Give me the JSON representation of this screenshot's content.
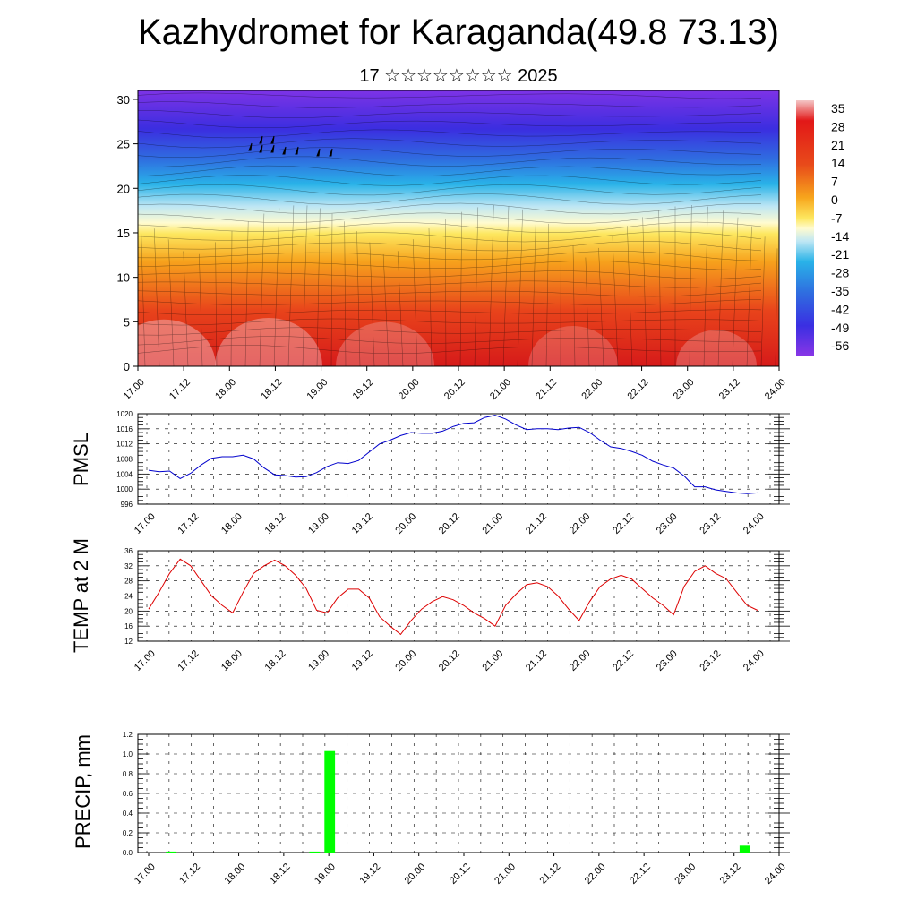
{
  "title": "Kazhydromet for Karaganda(49.8 73.13)",
  "subtitle": "17 ☆☆☆☆☆☆☆☆ 2025",
  "chart_data": [
    {
      "type": "heatmap",
      "x_ticks": [
        "17.00",
        "17.12",
        "18.00",
        "18.12",
        "19.00",
        "19.12",
        "20.00",
        "20.12",
        "21.00",
        "21.12",
        "22.00",
        "22.12",
        "23.00",
        "23.12",
        "24.00"
      ],
      "y_ticks": [
        0,
        5,
        10,
        15,
        20,
        25,
        30
      ],
      "ylim": [
        0,
        31
      ],
      "colorbar_labels": [
        "35",
        "28",
        "21",
        "14",
        "7",
        "0",
        "-7",
        "-14",
        "-21",
        "-28",
        "-35",
        "-42",
        "-49",
        "-56"
      ],
      "colors": [
        "#f6c2c2",
        "#d61a1a",
        "#e8431b",
        "#f7a21c",
        "#fde75f",
        "#fffbd0",
        "#bde6f4",
        "#29b3e8",
        "#2f6ee0",
        "#3b2ee0",
        "#7d33e6"
      ]
    },
    {
      "type": "line",
      "ylabel": "PMSL",
      "ylim": [
        996,
        1020
      ],
      "y_ticks": [
        996,
        1000,
        1004,
        1008,
        1012,
        1016,
        1020
      ],
      "x_ticks": [
        "17.00",
        "17.12",
        "18.00",
        "18.12",
        "19.00",
        "19.12",
        "20.00",
        "20.12",
        "21.00",
        "21.12",
        "22.00",
        "22.12",
        "23.00",
        "23.12",
        "24.00"
      ],
      "color": "#0000cc",
      "values": [
        1005,
        1004.6,
        1004.8,
        1002.8,
        1004.2,
        1006.4,
        1008.2,
        1008.6,
        1008.6,
        1009,
        1008,
        1005.6,
        1003.8,
        1003.6,
        1003.2,
        1003.3,
        1004.4,
        1006,
        1007,
        1006.8,
        1007.6,
        1009.8,
        1012,
        1013,
        1014.2,
        1015,
        1014.8,
        1014.8,
        1015.4,
        1016.6,
        1017.4,
        1017.6,
        1019,
        1019.6,
        1018.6,
        1017,
        1015.8,
        1016,
        1016,
        1015.8,
        1016.2,
        1016.4,
        1015,
        1013,
        1011.2,
        1010.8,
        1010,
        1009,
        1007.4,
        1006.4,
        1005.6,
        1003.5,
        1000.6,
        1000.6,
        999.8,
        999.4,
        999,
        998.8,
        999
      ]
    },
    {
      "type": "line",
      "ylabel": "TEMP at 2 M",
      "ylim": [
        12,
        36
      ],
      "y_ticks": [
        12,
        16,
        20,
        24,
        28,
        32,
        36
      ],
      "x_ticks": [
        "17.00",
        "17.12",
        "18.00",
        "18.12",
        "19.00",
        "19.12",
        "20.00",
        "20.12",
        "21.00",
        "21.12",
        "22.00",
        "22.12",
        "23.00",
        "23.12",
        "24.00"
      ],
      "color": "#dd0000",
      "values": [
        20.5,
        25,
        30,
        33.8,
        32,
        28,
        24,
        21.5,
        19.5,
        25,
        30,
        32,
        33.5,
        32,
        29.5,
        26,
        20.2,
        19.5,
        23.5,
        25.8,
        25.8,
        23.5,
        18.5,
        16,
        13.8,
        17.5,
        20.5,
        22.5,
        23.8,
        23,
        21.5,
        19.5,
        18,
        16,
        21.5,
        24.5,
        27,
        27.5,
        26.5,
        24,
        20.5,
        17.5,
        22.5,
        26.5,
        28.5,
        29.5,
        28.5,
        26,
        23.5,
        21.5,
        19,
        26.5,
        30.5,
        32,
        30,
        28.6,
        25,
        21.5,
        20.2
      ]
    },
    {
      "type": "bar",
      "ylabel": "PRECIP, mm",
      "ylim": [
        0,
        1.2
      ],
      "y_ticks": [
        "0.0",
        "0.2",
        "0.4",
        "0.6",
        "0.8",
        "1.0",
        "1.2"
      ],
      "x_ticks": [
        "17.00",
        "17.12",
        "18.00",
        "18.12",
        "19.00",
        "19.12",
        "20.00",
        "20.12",
        "21.00",
        "21.12",
        "22.00",
        "22.12",
        "23.00",
        "23.12",
        "24.00"
      ],
      "color": "#00ff00",
      "bars": [
        {
          "t": 3,
          "value": 0.01
        },
        {
          "t": 24,
          "value": 1.03
        },
        {
          "t": 22,
          "value": 0.01
        },
        {
          "t": 79,
          "value": 0.07
        }
      ]
    }
  ]
}
